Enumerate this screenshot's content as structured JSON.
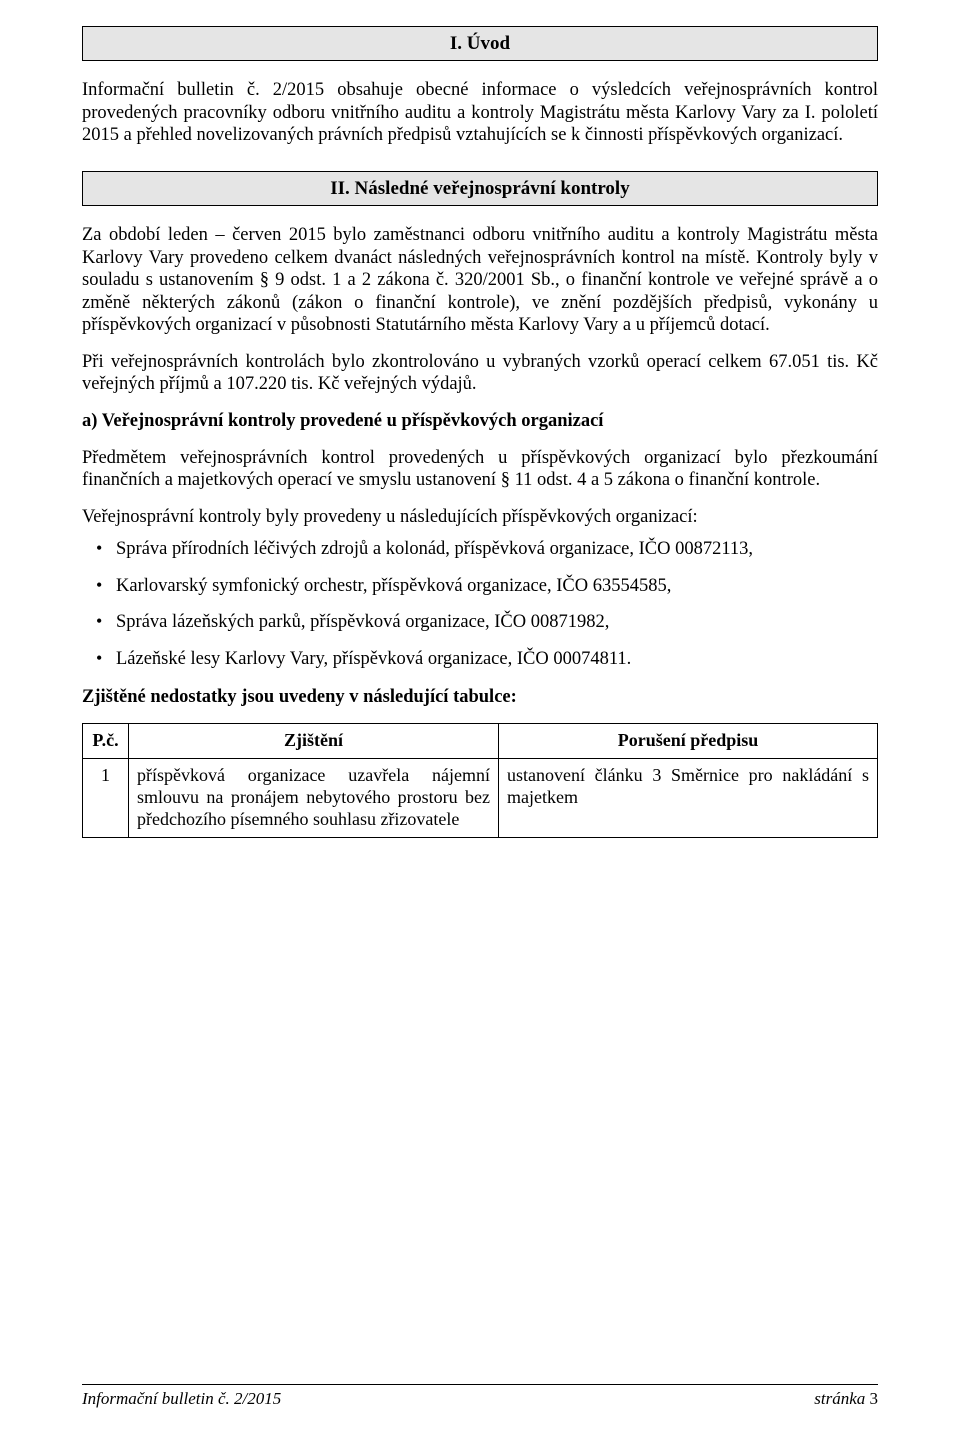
{
  "section1": {
    "heading": "I. Úvod",
    "para1": "Informační bulletin č. 2/2015 obsahuje obecné informace o výsledcích veřejnosprávních kontrol provedených pracovníky odboru vnitřního auditu a kontroly Magistrátu města Karlovy Vary za I. pololetí 2015 a přehled novelizovaných právních předpisů vztahujících se k činnosti příspěvkových organizací."
  },
  "section2": {
    "heading": "II. Následné veřejnosprávní kontroly",
    "para1": "Za období leden – červen 2015 bylo zaměstnanci odboru vnitřního auditu a kontroly Magistrátu města Karlovy Vary provedeno celkem dvanáct následných veřejnosprávních kontrol na místě. Kontroly byly v souladu s ustanovením § 9 odst. 1 a 2 zákona č. 320/2001 Sb., o finanční kontrole ve veřejné správě a o změně některých zákonů (zákon o finanční kontrole), ve znění pozdějších předpisů, vykonány u příspěvkových organizací v působnosti Statutárního města Karlovy Vary a u příjemců dotací.",
    "para2": "Při veřejnosprávních kontrolách bylo zkontrolováno u vybraných vzorků operací celkem 67.051 tis. Kč veřejných příjmů a 107.220 tis. Kč veřejných výdajů.",
    "subA_heading": "a)  Veřejnosprávní kontroly provedené u příspěvkových organizací",
    "subA_para1": "Předmětem veřejnosprávních kontrol provedených u příspěvkových organizací bylo přezkoumání finančních a majetkových operací ve smyslu ustanovení § 11 odst. 4 a 5 zákona o finanční kontrole.",
    "subA_para2": "Veřejnosprávní kontroly byly provedeny u následujících příspěvkových organizací:",
    "bullets": [
      "Správa přírodních léčivých zdrojů a kolonád, příspěvková organizace, IČO 00872113,",
      "Karlovarský symfonický orchestr, příspěvková organizace, IČO 63554585,",
      "Správa lázeňských parků, příspěvková organizace, IČO 00871982,",
      "Lázeňské lesy Karlovy Vary, příspěvková organizace, IČO 00074811."
    ],
    "tableIntro": "Zjištěné nedostatky jsou uvedeny v následující tabulce:",
    "table": {
      "headers": {
        "c1": "P.č.",
        "c2": "Zjištění",
        "c3": "Porušení předpisu"
      },
      "rows": [
        {
          "num": "1",
          "finding": "příspěvková organizace uzavřela nájemní smlouvu na pronájem nebytového prostoru bez předchozího písemného souhlasu zřizovatele",
          "violation": "ustanovení článku 3 Směrnice pro nakládání s majetkem"
        }
      ]
    }
  },
  "footer": {
    "left": "Informační bulletin č. 2/2015",
    "pageLabel": "stránka",
    "pageNum": "3"
  }
}
